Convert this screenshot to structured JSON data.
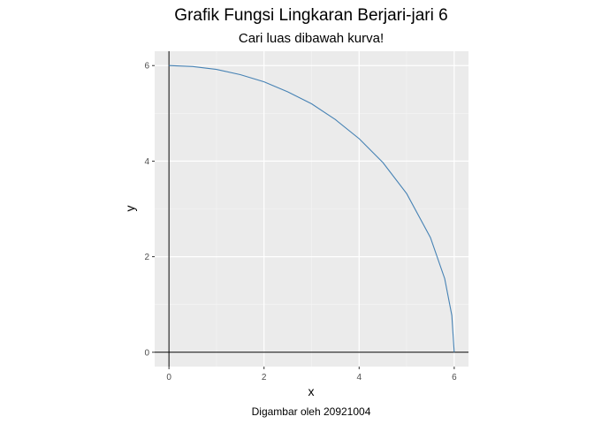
{
  "chart_data": {
    "type": "line",
    "title": "Grafik Fungsi Lingkaran Berjari-jari 6",
    "subtitle": "Cari luas dibawah kurva!",
    "caption": "Digambar oleh 20921004",
    "xlabel": "x",
    "ylabel": "y",
    "xlim": [
      -0.3,
      6.3
    ],
    "ylim": [
      -0.3,
      6.3
    ],
    "x_ticks": [
      "0",
      "2",
      "4",
      "6"
    ],
    "y_ticks": [
      "0",
      "2",
      "4",
      "6"
    ],
    "grid": true,
    "reference_lines": {
      "x": 0,
      "y": 0
    },
    "line_color": "#4682b4",
    "series": [
      {
        "function": "y = sqrt(36 - x^2)",
        "x": [
          0,
          0.5,
          1,
          1.5,
          2,
          2.5,
          3,
          3.5,
          4,
          4.5,
          5,
          5.5,
          5.8,
          5.95,
          6
        ],
        "y": [
          6,
          5.98,
          5.92,
          5.81,
          5.66,
          5.45,
          5.2,
          4.87,
          4.47,
          3.97,
          3.32,
          2.4,
          1.54,
          0.77,
          0
        ]
      }
    ]
  }
}
